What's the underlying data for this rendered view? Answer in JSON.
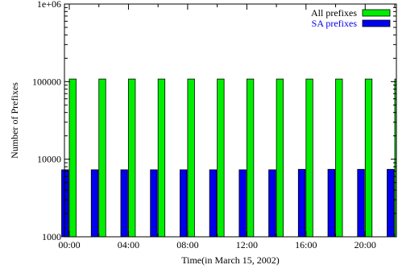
{
  "chart_data": {
    "type": "bar",
    "xlabel": "Time(in March 15, 2002)",
    "ylabel": "Number of Prefixes",
    "y_scale": "log",
    "ylim": [
      1000,
      1000000
    ],
    "y_ticks": [
      1000,
      10000,
      100000,
      1000000
    ],
    "y_tick_labels": [
      "1000",
      "10000",
      "100000",
      "1e+06"
    ],
    "x_unit": "hours",
    "xlim": [
      0,
      22
    ],
    "x_ticks": [
      0,
      4,
      8,
      12,
      16,
      20
    ],
    "x_tick_labels": [
      "00:00",
      "04:00",
      "08:00",
      "12:00",
      "16:00",
      "20:00"
    ],
    "x": [
      0,
      2,
      4,
      6,
      8,
      10,
      12,
      14,
      16,
      18,
      20,
      22
    ],
    "series": [
      {
        "name": "All prefixes",
        "color": "#00ee00",
        "values": [
          108000,
          108000,
          108000,
          108000,
          108000,
          108000,
          108000,
          108000,
          108000,
          108000,
          108000,
          108000
        ]
      },
      {
        "name": "SA prefixes",
        "color": "#0000ee",
        "values": [
          7300,
          7300,
          7300,
          7300,
          7300,
          7300,
          7300,
          7300,
          7400,
          7400,
          7400,
          7400
        ]
      }
    ],
    "legend_position": "top-right",
    "grid": false
  }
}
